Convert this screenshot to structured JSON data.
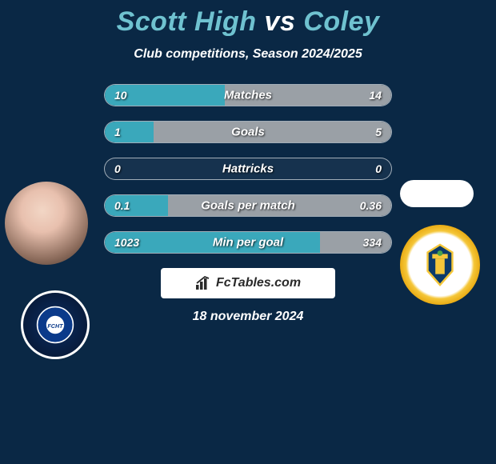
{
  "title": {
    "player1": "Scott High",
    "vs": "vs",
    "player2": "Coley"
  },
  "subtitle": "Club competitions, Season 2024/2025",
  "colors": {
    "left_fill": "#3aa8bb",
    "right_fill": "#9aa0a6",
    "bar_border": "rgba(255,255,255,0.6)",
    "background": "#0a2845"
  },
  "stats": [
    {
      "label": "Matches",
      "left_val": "10",
      "right_val": "14",
      "left_pct": 42,
      "right_pct": 58
    },
    {
      "label": "Goals",
      "left_val": "1",
      "right_val": "5",
      "left_pct": 17,
      "right_pct": 83
    },
    {
      "label": "Hattricks",
      "left_val": "0",
      "right_val": "0",
      "left_pct": 0,
      "right_pct": 0
    },
    {
      "label": "Goals per match",
      "left_val": "0.1",
      "right_val": "0.36",
      "left_pct": 22,
      "right_pct": 78
    },
    {
      "label": "Min per goal",
      "left_val": "1023",
      "right_val": "334",
      "left_pct": 75,
      "right_pct": 25
    }
  ],
  "brand": "FcTables.com",
  "date": "18 november 2024",
  "left_crest_text": "FC HALIFAX TOWN",
  "right_crest_hint": "Sutton United crest"
}
